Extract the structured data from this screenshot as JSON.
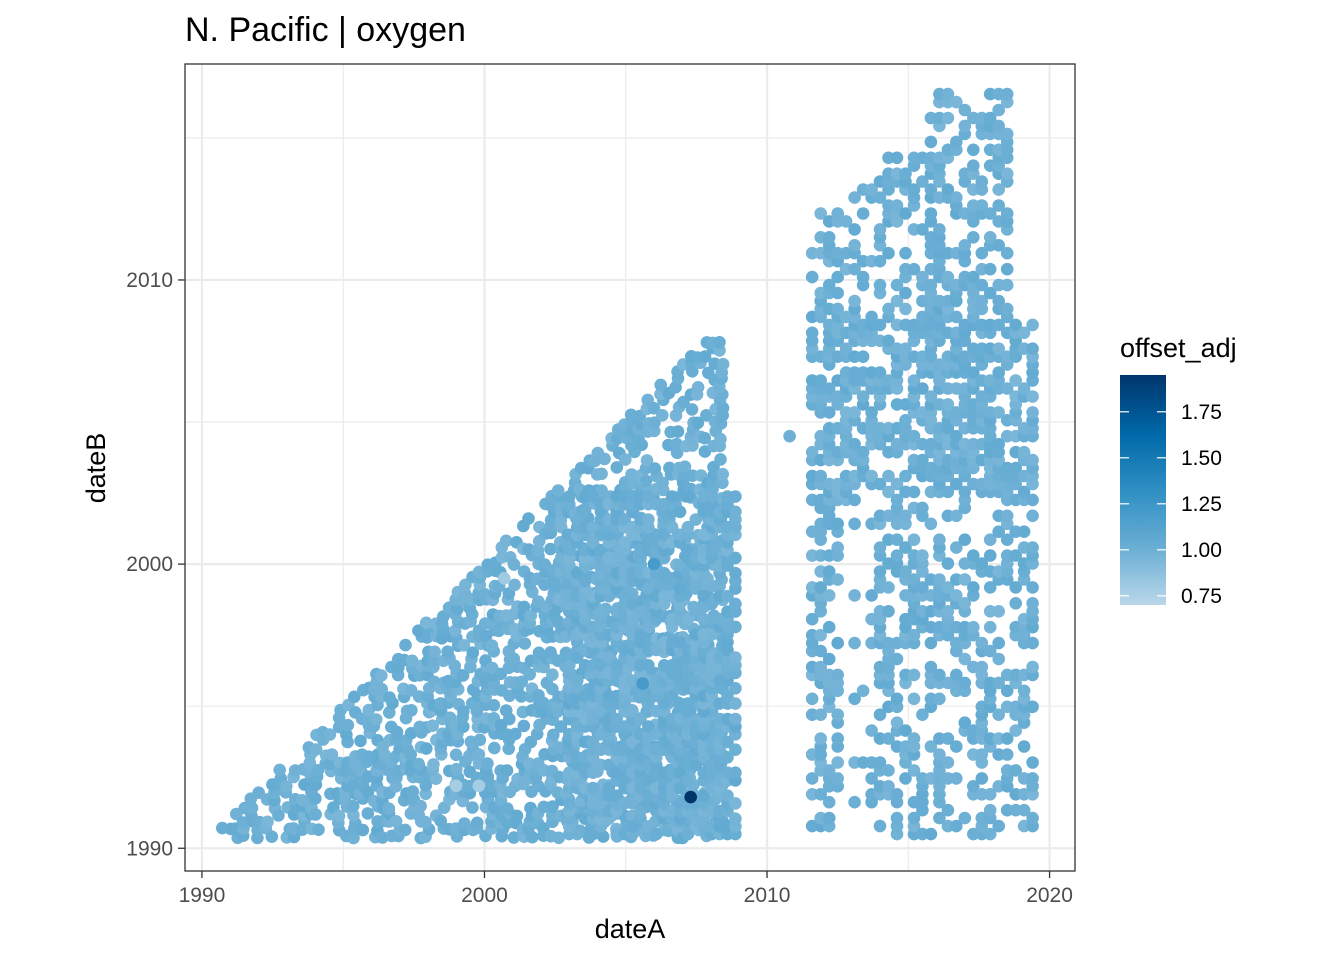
{
  "chart_data": {
    "type": "scatter",
    "title": "N. Pacific | oxygen",
    "xlabel": "dateA",
    "ylabel": "dateB",
    "xlim": [
      1989.4,
      2020.9
    ],
    "ylim": [
      1989.2,
      2017.6
    ],
    "x_ticks": [
      1990,
      2000,
      2010,
      2020
    ],
    "y_ticks": [
      1990,
      2000,
      2010
    ],
    "x_tick_labels": [
      "1990",
      "2000",
      "2010",
      "2020"
    ],
    "y_tick_labels": [
      "1990",
      "2000",
      "2010"
    ],
    "grid": true,
    "legend": {
      "title": "offset_adj",
      "position": "right",
      "ticks": [
        0.75,
        1.0,
        1.25,
        1.5,
        1.75
      ],
      "tick_labels": [
        "0.75",
        "1.00",
        "1.25",
        "1.50",
        "1.75"
      ],
      "range": [
        0.7,
        1.95
      ],
      "colors": [
        "#b9d7e9",
        "#6aaed4",
        "#2e8fc3",
        "#0068a8",
        "#00356b"
      ]
    },
    "point_color_default": "#6aaed4",
    "description_regions": [
      {
        "name": "triangle",
        "x_range": [
          1990.5,
          2008.5
        ],
        "y_range": [
          1990.3,
          2008.0
        ],
        "offset_adj": 1.0
      },
      {
        "name": "block-2003-2009",
        "x_range": [
          2003.0,
          2009.0
        ],
        "y_range": [
          1990.5,
          2003.0
        ],
        "offset_adj": 1.0
      },
      {
        "name": "block-2011-2019",
        "x_range": [
          2011.5,
          2019.5
        ],
        "y_range": [
          1990.5,
          2016.7
        ],
        "offset_adj": 1.0
      }
    ],
    "highlight_points": [
      {
        "x": 2007.3,
        "y": 1991.8,
        "offset_adj": 1.95
      },
      {
        "x": 2006.0,
        "y": 2000.0,
        "offset_adj": 1.2
      },
      {
        "x": 2005.6,
        "y": 1995.8,
        "offset_adj": 1.2
      },
      {
        "x": 1999.0,
        "y": 1992.2,
        "offset_adj": 0.78
      },
      {
        "x": 1999.8,
        "y": 1992.2,
        "offset_adj": 0.78
      },
      {
        "x": 2000.7,
        "y": 1999.5,
        "offset_adj": 0.8
      },
      {
        "x": 2010.8,
        "y": 2004.5,
        "offset_adj": 1.0
      }
    ]
  }
}
